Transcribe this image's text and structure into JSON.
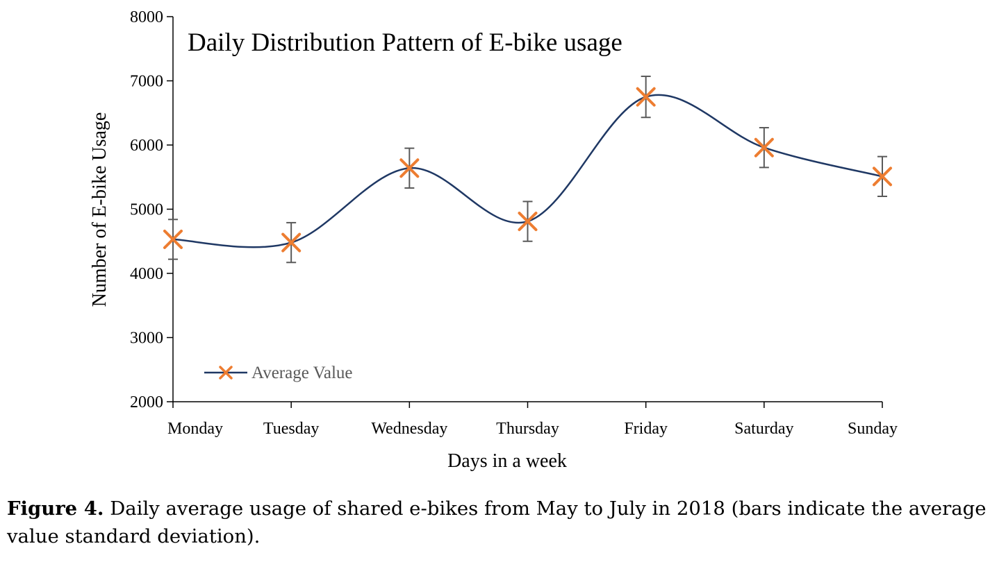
{
  "caption": {
    "label": "Figure 4.",
    "text": " Daily average usage of shared e-bikes from May to July in 2018 (bars indicate the average value standard deviation)."
  },
  "chart_data": {
    "type": "line",
    "title": "Daily Distribution Pattern of E-bike usage",
    "xlabel": "Days in a week",
    "ylabel": "Number of E-bike Usage",
    "categories": [
      "Monday",
      "Tuesday",
      "Wednesday",
      "Thursday",
      "Friday",
      "Saturday",
      "Sunday"
    ],
    "series": [
      {
        "name": "Average Value",
        "values": [
          4530,
          4480,
          5640,
          4810,
          6750,
          5960,
          5510
        ],
        "error": [
          310,
          310,
          310,
          310,
          320,
          310,
          310
        ],
        "line_color": "#1f3864",
        "marker": "x",
        "marker_color": "#ed7d31",
        "error_color": "#595959"
      }
    ],
    "ylim": [
      2000,
      8000
    ],
    "yticks": [
      2000,
      3000,
      4000,
      5000,
      6000,
      7000,
      8000
    ],
    "smooth": true,
    "grid": false,
    "legend_position": "bottom-left"
  }
}
